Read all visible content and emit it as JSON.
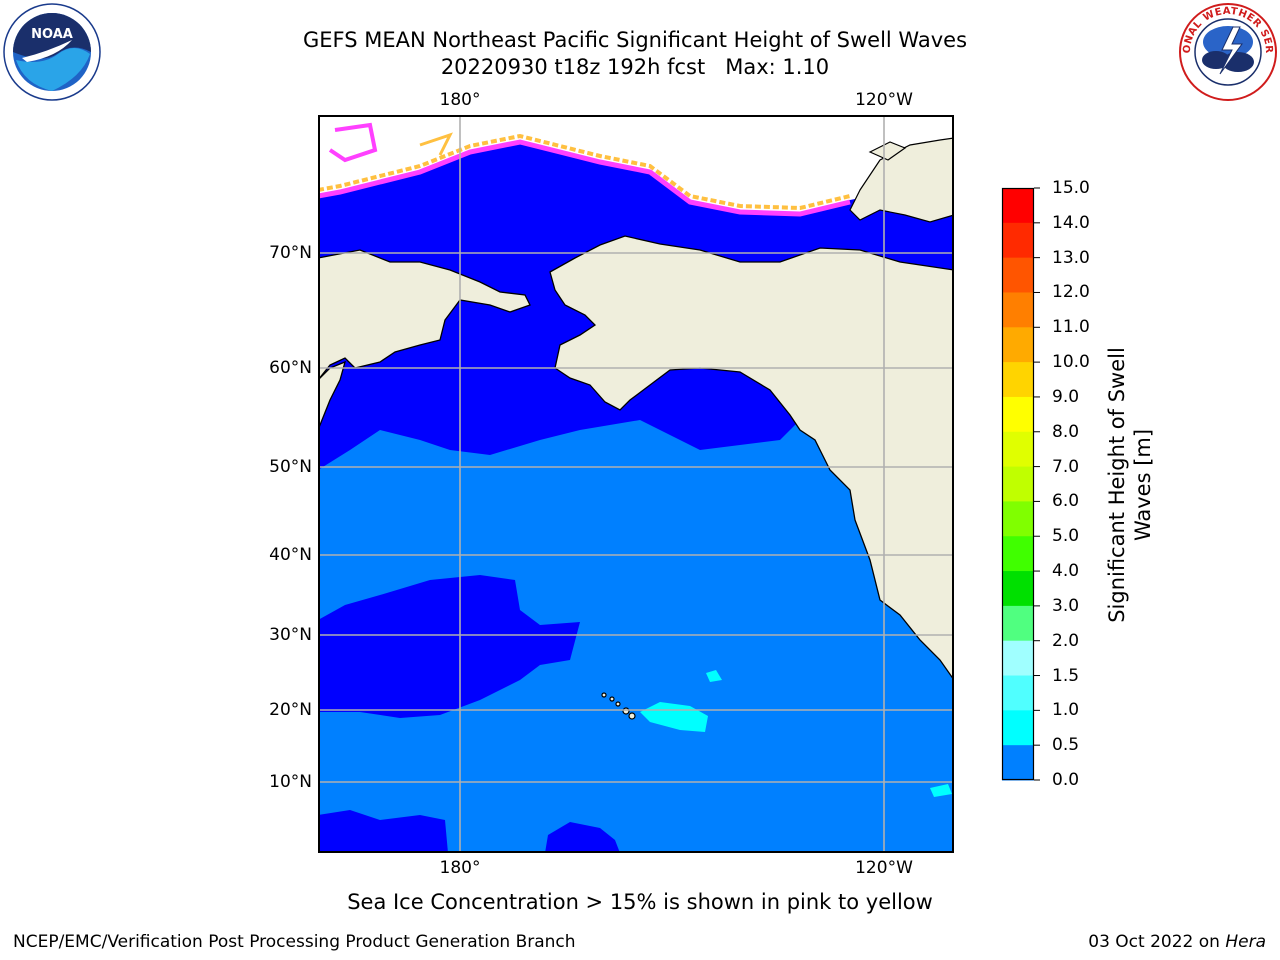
{
  "header": {
    "title_line1": "GEFS MEAN Northeast Pacific Significant Height of Swell Waves",
    "title_line2": "20220930 t18z 192h fcst   Max: 1.10"
  },
  "logos": {
    "left_icon": "noaa-logo-icon",
    "left_text": "NOAA",
    "right_icon": "nws-logo-icon",
    "right_text": "NATIONAL WEATHER SERVICE"
  },
  "map": {
    "lon_labels": [
      "180°",
      "120°W"
    ],
    "lat_labels": [
      "70°N",
      "60°N",
      "50°N",
      "40°N",
      "30°N",
      "20°N",
      "10°N"
    ],
    "colors": {
      "ocean_0_0p5": "#0000ff",
      "ocean_0p5_1": "#0080ff",
      "ocean_1_1p5": "#00ffff",
      "land": "#efeedc",
      "grid": "#b0b0b0",
      "ice_low": "#ff40ff",
      "ice_high": "#ffc040"
    }
  },
  "colorbar": {
    "title_line1": "Significant Height of Swell",
    "title_line2": "Waves [m]",
    "labels": [
      "15.0",
      "14.0",
      "13.0",
      "12.0",
      "11.0",
      "10.0",
      "9.0",
      "8.0",
      "7.0",
      "6.0",
      "5.0",
      "4.0",
      "3.0",
      "2.0",
      "1.5",
      "1.0",
      "0.5",
      "0.0"
    ],
    "colors": [
      "#ff0000",
      "#ff2a00",
      "#ff5500",
      "#ff7f00",
      "#ffaa00",
      "#ffd400",
      "#ffff00",
      "#e0ff00",
      "#c0ff00",
      "#80ff00",
      "#40ff00",
      "#00e000",
      "#50ff80",
      "#a0ffff",
      "#50ffff",
      "#00ffff",
      "#0080ff",
      "#0000ff"
    ]
  },
  "footer": {
    "note": "Sea Ice Concentration > 15% is shown in pink to yellow",
    "credit_left": "NCEP/EMC/Verification Post Processing Product Generation Branch",
    "credit_date": "03 Oct 2022 on",
    "credit_host": "Hera"
  }
}
